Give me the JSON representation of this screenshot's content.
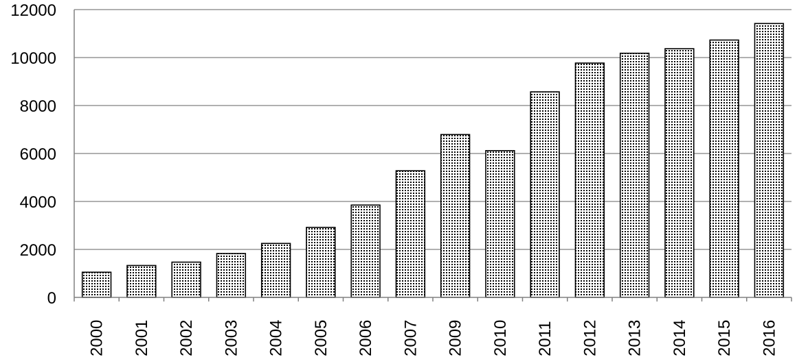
{
  "chart_data": {
    "type": "bar",
    "title": "",
    "xlabel": "",
    "ylabel": "",
    "categories": [
      "2000",
      "2001",
      "2002",
      "2003",
      "2004",
      "2005",
      "2006",
      "2007",
      "2009",
      "2010",
      "2011",
      "2012",
      "2013",
      "2014",
      "2015",
      "2016"
    ],
    "values": [
      1050,
      1330,
      1470,
      1830,
      2250,
      2920,
      3850,
      5280,
      6790,
      6120,
      8570,
      9770,
      10180,
      10370,
      10730,
      11420
    ],
    "ylim": [
      0,
      12000
    ],
    "yticks": [
      "0",
      "2000",
      "4000",
      "6000",
      "8000",
      "10000",
      "12000"
    ],
    "grid": true,
    "legend": "none",
    "bar_pattern": "dotted",
    "colors": {
      "bar_fill": "#ffffff",
      "bar_dots": "#000000",
      "bar_stroke": "#000000",
      "grid": "#808080"
    }
  }
}
